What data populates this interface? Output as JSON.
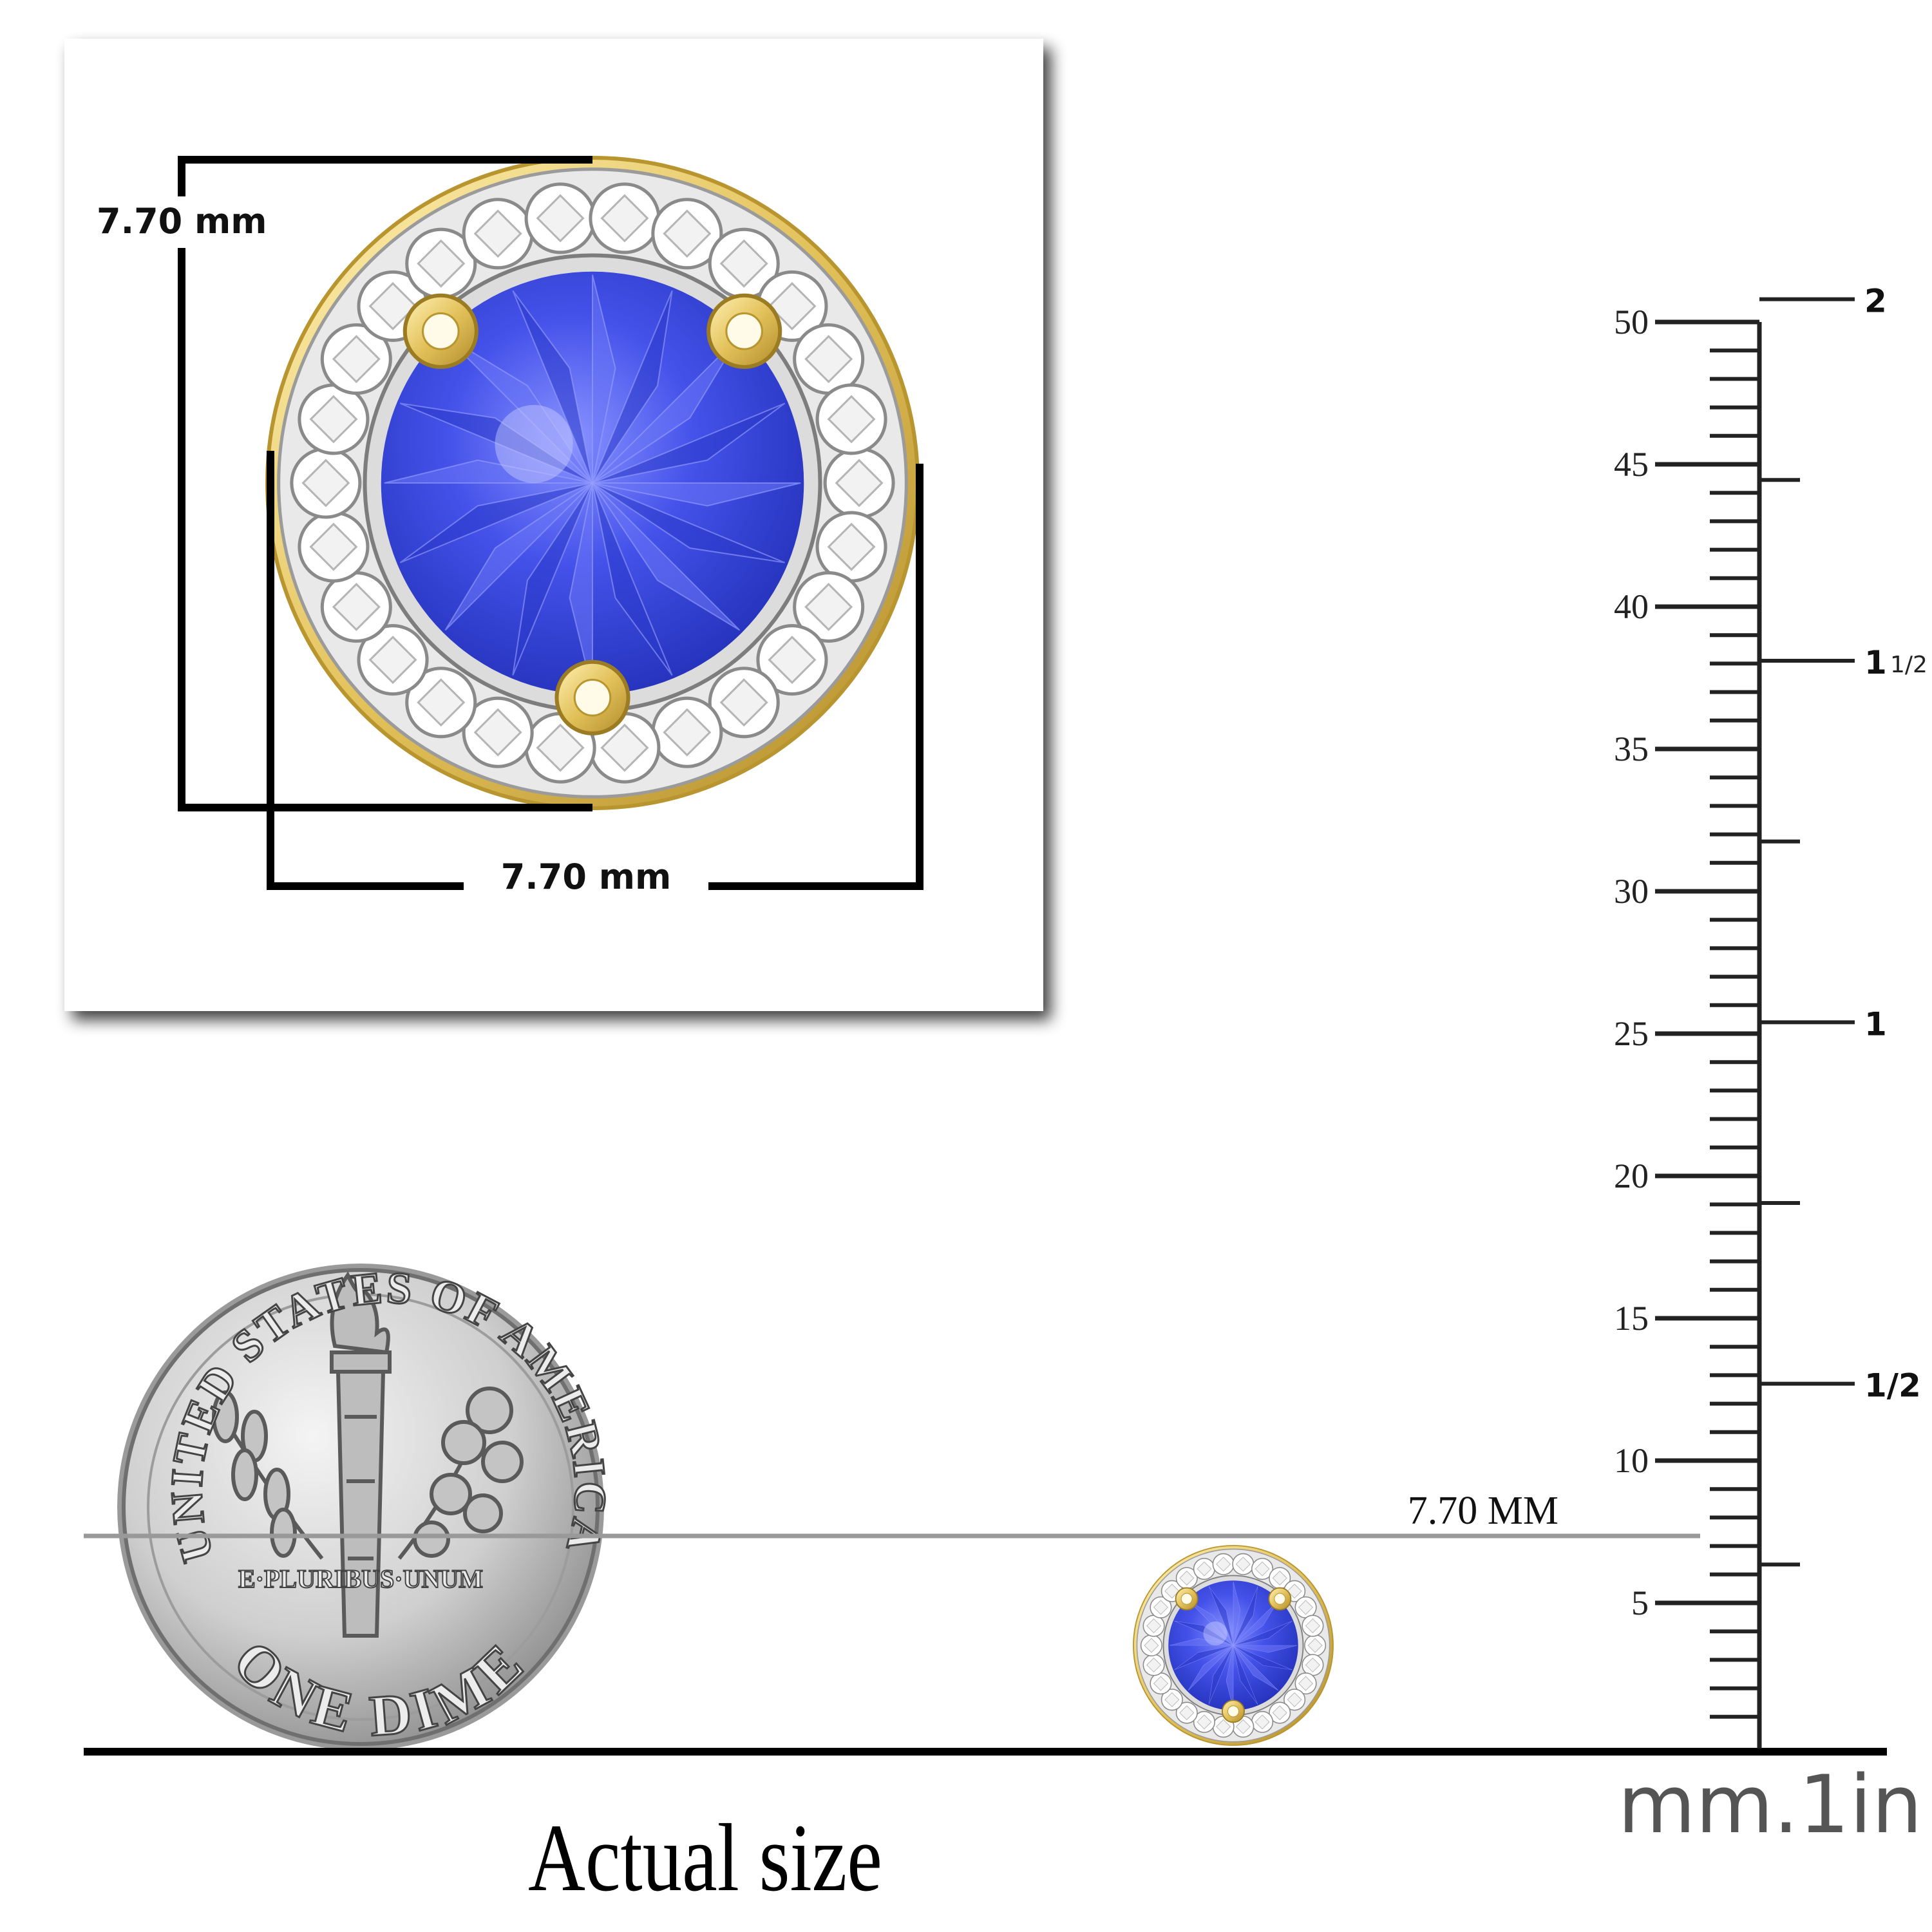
{
  "detail": {
    "height_label": "7.70 mm",
    "width_label": "7.70 mm"
  },
  "actual": {
    "size_label": "7.70 MM",
    "caption": "Actual size"
  },
  "dime": {
    "top_text": "UNITED STATES OF AMERICA",
    "motto": "E·PLURIBUS·UNUM",
    "denomination": "ONE DIME"
  },
  "ruler": {
    "mm_labels": [
      "50",
      "45",
      "40",
      "35",
      "30",
      "25",
      "20",
      "15",
      "10",
      "5"
    ],
    "inch_labels": {
      "two": "2",
      "one_half_main": "1",
      "one_half_frac": "1/2",
      "one": "1",
      "half": "1/2"
    },
    "unit_label": "mm.1in"
  },
  "colors": {
    "tanzanite": "#3a49e0",
    "gold": "#e6c865",
    "silver": "#c9c9c9"
  }
}
